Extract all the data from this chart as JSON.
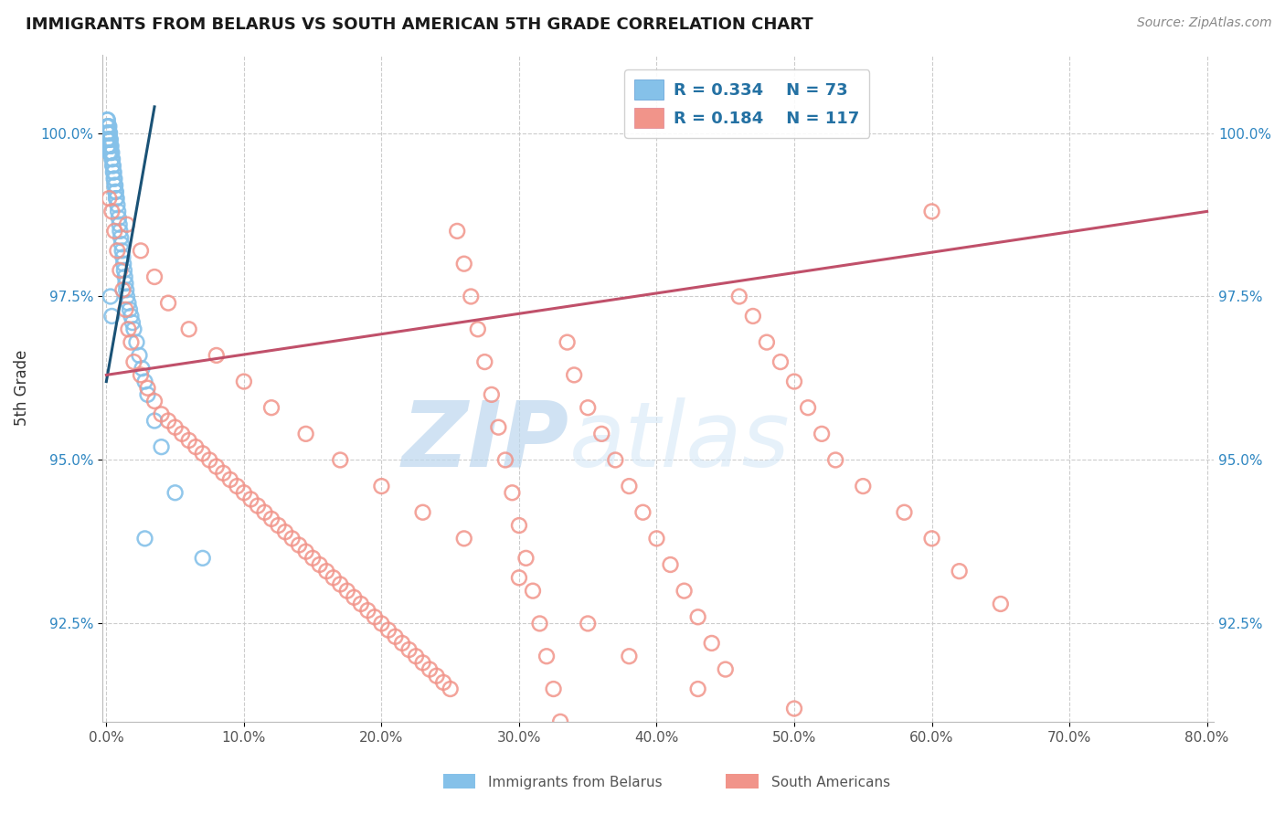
{
  "title": "IMMIGRANTS FROM BELARUS VS SOUTH AMERICAN 5TH GRADE CORRELATION CHART",
  "source_text": "Source: ZipAtlas.com",
  "ylabel": "5th Grade",
  "watermark_zip": "ZIP",
  "watermark_atlas": "atlas",
  "xmin": 0.0,
  "xmax": 80.0,
  "ymin": 91.0,
  "ymax": 101.2,
  "ytick_vals": [
    92.5,
    95.0,
    97.5,
    100.0
  ],
  "ytick_right_vals": [
    92.5,
    95.0,
    97.5,
    100.0
  ],
  "xtick_vals": [
    0.0,
    10.0,
    20.0,
    30.0,
    40.0,
    50.0,
    60.0,
    70.0,
    80.0
  ],
  "legend_r1": "R = 0.334",
  "legend_n1": "N = 73",
  "legend_r2": "R = 0.184",
  "legend_n2": "N = 117",
  "color_blue": "#85C1E9",
  "color_pink": "#F1948A",
  "line_blue": "#1A5276",
  "line_pink": "#C0506A",
  "title_color": "#1a1a1a",
  "source_color": "#888888",
  "legend_text_color": "#2471A3",
  "tick_color_y": "#2E86C1",
  "tick_color_x": "#555555",
  "grid_color": "#CCCCCC",
  "blue_x": [
    0.05,
    0.05,
    0.05,
    0.05,
    0.1,
    0.1,
    0.1,
    0.1,
    0.1,
    0.15,
    0.15,
    0.15,
    0.15,
    0.2,
    0.2,
    0.2,
    0.2,
    0.2,
    0.25,
    0.25,
    0.25,
    0.3,
    0.3,
    0.3,
    0.35,
    0.35,
    0.4,
    0.4,
    0.45,
    0.45,
    0.5,
    0.5,
    0.55,
    0.55,
    0.6,
    0.6,
    0.65,
    0.65,
    0.7,
    0.7,
    0.75,
    0.8,
    0.85,
    0.9,
    0.95,
    1.0,
    1.05,
    1.1,
    1.15,
    1.2,
    1.25,
    1.3,
    1.35,
    1.4,
    1.45,
    1.5,
    1.6,
    1.7,
    1.8,
    1.9,
    2.0,
    2.2,
    2.4,
    2.6,
    2.8,
    3.0,
    3.5,
    4.0,
    5.0,
    7.0,
    0.3,
    0.4,
    2.8
  ],
  "blue_y": [
    100.2,
    100.1,
    100.0,
    99.9,
    100.2,
    100.1,
    100.0,
    99.9,
    99.8,
    100.1,
    100.0,
    99.9,
    99.8,
    100.1,
    100.0,
    99.9,
    99.8,
    99.7,
    100.0,
    99.9,
    99.8,
    99.9,
    99.8,
    99.7,
    99.8,
    99.7,
    99.7,
    99.6,
    99.6,
    99.5,
    99.5,
    99.4,
    99.4,
    99.3,
    99.3,
    99.2,
    99.2,
    99.1,
    99.1,
    99.0,
    99.0,
    98.9,
    98.8,
    98.7,
    98.6,
    98.5,
    98.4,
    98.3,
    98.2,
    98.1,
    98.0,
    97.9,
    97.8,
    97.7,
    97.6,
    97.5,
    97.4,
    97.3,
    97.2,
    97.1,
    97.0,
    96.8,
    96.6,
    96.4,
    96.2,
    96.0,
    95.6,
    95.2,
    94.5,
    93.5,
    97.5,
    97.2,
    93.8
  ],
  "pink_x": [
    0.2,
    0.4,
    0.6,
    0.8,
    1.0,
    1.2,
    1.4,
    1.6,
    1.8,
    2.0,
    2.5,
    3.0,
    3.5,
    4.0,
    4.5,
    5.0,
    5.5,
    6.0,
    6.5,
    7.0,
    7.5,
    8.0,
    8.5,
    9.0,
    9.5,
    10.0,
    10.5,
    11.0,
    11.5,
    12.0,
    12.5,
    13.0,
    13.5,
    14.0,
    14.5,
    15.0,
    15.5,
    16.0,
    16.5,
    17.0,
    17.5,
    18.0,
    18.5,
    19.0,
    19.5,
    20.0,
    20.5,
    21.0,
    21.5,
    22.0,
    22.5,
    23.0,
    23.5,
    24.0,
    24.5,
    25.0,
    25.5,
    26.0,
    26.5,
    27.0,
    27.5,
    28.0,
    28.5,
    29.0,
    29.5,
    30.0,
    30.5,
    31.0,
    31.5,
    32.0,
    32.5,
    33.0,
    33.5,
    34.0,
    35.0,
    36.0,
    37.0,
    38.0,
    39.0,
    40.0,
    41.0,
    42.0,
    43.0,
    44.0,
    45.0,
    46.0,
    47.0,
    48.0,
    49.0,
    50.0,
    51.0,
    52.0,
    53.0,
    55.0,
    58.0,
    60.0,
    62.0,
    65.0,
    1.5,
    2.5,
    3.5,
    4.5,
    6.0,
    8.0,
    10.0,
    12.0,
    14.5,
    17.0,
    20.0,
    23.0,
    26.0,
    30.0,
    35.0,
    38.0,
    43.0,
    50.0,
    60.0
  ],
  "pink_y": [
    99.0,
    98.8,
    98.5,
    98.2,
    97.9,
    97.6,
    97.3,
    97.0,
    96.8,
    96.5,
    96.3,
    96.1,
    95.9,
    95.7,
    95.6,
    95.5,
    95.4,
    95.3,
    95.2,
    95.1,
    95.0,
    94.9,
    94.8,
    94.7,
    94.6,
    94.5,
    94.4,
    94.3,
    94.2,
    94.1,
    94.0,
    93.9,
    93.8,
    93.7,
    93.6,
    93.5,
    93.4,
    93.3,
    93.2,
    93.1,
    93.0,
    92.9,
    92.8,
    92.7,
    92.6,
    92.5,
    92.4,
    92.3,
    92.2,
    92.1,
    92.0,
    91.9,
    91.8,
    91.7,
    91.6,
    91.5,
    98.5,
    98.0,
    97.5,
    97.0,
    96.5,
    96.0,
    95.5,
    95.0,
    94.5,
    94.0,
    93.5,
    93.0,
    92.5,
    92.0,
    91.5,
    91.0,
    96.8,
    96.3,
    95.8,
    95.4,
    95.0,
    94.6,
    94.2,
    93.8,
    93.4,
    93.0,
    92.6,
    92.2,
    91.8,
    97.5,
    97.2,
    96.8,
    96.5,
    96.2,
    95.8,
    95.4,
    95.0,
    94.6,
    94.2,
    93.8,
    93.3,
    92.8,
    98.6,
    98.2,
    97.8,
    97.4,
    97.0,
    96.6,
    96.2,
    95.8,
    95.4,
    95.0,
    94.6,
    94.2,
    93.8,
    93.2,
    92.5,
    92.0,
    91.5,
    91.2,
    98.8
  ],
  "blue_line_x": [
    0.0,
    3.5
  ],
  "blue_line_y": [
    96.2,
    100.4
  ],
  "pink_line_x": [
    0.0,
    80.0
  ],
  "pink_line_y": [
    96.3,
    98.8
  ]
}
